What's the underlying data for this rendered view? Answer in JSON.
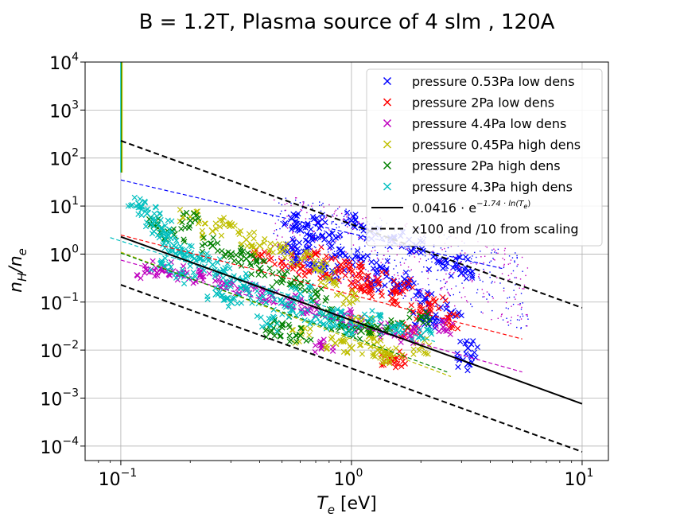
{
  "title": "B = 1.2T, Plasma source of 4 slm , 120A",
  "xlabel": {
    "main": "T",
    "sub": "e",
    "unit": " [eV]"
  },
  "ylabel": {
    "main1": "n",
    "sub1": "H",
    "slash": "/",
    "main2": "n",
    "sub2": "e"
  },
  "chart_data": {
    "type": "scatter",
    "xscale": "log",
    "yscale": "log",
    "xlim": [
      0.07,
      13
    ],
    "ylim": [
      5e-05,
      10000
    ],
    "grid": true,
    "legend_position": "top-right",
    "x_ticks": [
      {
        "value": 0.1,
        "base": "10",
        "exp": "−1"
      },
      {
        "value": 1,
        "base": "10",
        "exp": "0"
      },
      {
        "value": 10,
        "base": "10",
        "exp": "1"
      }
    ],
    "y_ticks": [
      {
        "value": 0.0001,
        "base": "10",
        "exp": "−4"
      },
      {
        "value": 0.001,
        "base": "10",
        "exp": "−3"
      },
      {
        "value": 0.01,
        "base": "10",
        "exp": "−2"
      },
      {
        "value": 0.1,
        "base": "10",
        "exp": "−1"
      },
      {
        "value": 1,
        "base": "10",
        "exp": "0"
      },
      {
        "value": 10,
        "base": "10",
        "exp": "1"
      },
      {
        "value": 100,
        "base": "10",
        "exp": "2"
      },
      {
        "value": 1000,
        "base": "10",
        "exp": "3"
      },
      {
        "value": 10000,
        "base": "10",
        "exp": "4"
      }
    ],
    "series": [
      {
        "name": "pressure 0.53Pa low dens",
        "color": "#0000ff",
        "marker": "x",
        "fit_line": {
          "x": [
            0.1,
            4.5
          ],
          "y": [
            35,
            0.5
          ]
        },
        "points": [
          [
            0.55,
            5.5
          ],
          [
            0.6,
            3.2
          ],
          [
            0.65,
            1.8
          ],
          [
            0.72,
            4.5
          ],
          [
            0.8,
            2.5
          ],
          [
            0.9,
            1.2
          ],
          [
            1.0,
            5.0
          ],
          [
            1.1,
            0.8
          ],
          [
            1.2,
            3.0
          ],
          [
            1.35,
            0.5
          ],
          [
            1.5,
            2.0
          ],
          [
            1.7,
            0.3
          ],
          [
            1.9,
            1.5
          ],
          [
            2.1,
            0.12
          ],
          [
            2.4,
            0.7
          ],
          [
            2.7,
            0.06
          ],
          [
            3.0,
            0.4
          ],
          [
            3.2,
            0.011
          ],
          [
            3.2,
            0.0052
          ],
          [
            1.3,
            0.25
          ],
          [
            0.58,
            0.9
          ],
          [
            0.7,
            0.6
          ],
          [
            1.6,
            0.2
          ],
          [
            2.2,
            0.04
          ],
          [
            2.9,
            0.6
          ],
          [
            0.85,
            0.4
          ],
          [
            0.55,
            1.4
          ],
          [
            2.0,
            0.045
          ]
        ]
      },
      {
        "name": "pressure 2Pa low dens",
        "color": "#ff0000",
        "marker": "x",
        "fit_line": {
          "x": [
            0.1,
            5.5
          ],
          "y": [
            2.5,
            0.017
          ]
        },
        "points": [
          [
            0.4,
            0.9
          ],
          [
            0.5,
            0.7
          ],
          [
            0.6,
            0.5
          ],
          [
            0.7,
            1.0
          ],
          [
            0.8,
            0.35
          ],
          [
            0.9,
            0.6
          ],
          [
            1.0,
            0.25
          ],
          [
            1.1,
            0.45
          ],
          [
            1.2,
            0.18
          ],
          [
            1.3,
            0.3
          ],
          [
            1.5,
            0.12
          ],
          [
            1.7,
            0.2
          ],
          [
            2.0,
            0.06
          ],
          [
            2.3,
            0.1
          ],
          [
            1.55,
            0.0065
          ],
          [
            1.5,
            0.006
          ],
          [
            1.8,
            0.025
          ],
          [
            2.6,
            0.04
          ]
        ]
      },
      {
        "name": "pressure 4.4Pa low dens",
        "color": "#bf00bf",
        "marker": "x",
        "fit_line": {
          "x": [
            0.1,
            5.5
          ],
          "y": [
            0.75,
            0.0035
          ]
        },
        "points": [
          [
            0.13,
            0.45
          ],
          [
            0.15,
            0.5
          ],
          [
            0.18,
            0.4
          ],
          [
            0.22,
            0.35
          ],
          [
            0.28,
            0.25
          ],
          [
            0.35,
            0.2
          ],
          [
            0.45,
            0.14
          ],
          [
            0.55,
            0.1
          ],
          [
            0.65,
            0.07
          ],
          [
            0.75,
            0.012
          ],
          [
            0.9,
            0.05
          ],
          [
            1.1,
            0.035
          ],
          [
            1.4,
            0.025
          ],
          [
            1.8,
            0.02
          ],
          [
            2.5,
            0.03
          ]
        ]
      },
      {
        "name": "pressure 0.45Pa high dens",
        "color": "#bfbf00",
        "marker": "x",
        "fit_line": {
          "x": [
            0.1,
            2.7
          ],
          "y": [
            1.1,
            0.0028
          ]
        },
        "points": [
          [
            0.2,
            6.0
          ],
          [
            0.25,
            3.0
          ],
          [
            0.3,
            4.0
          ],
          [
            0.35,
            2.0
          ],
          [
            0.4,
            1.5
          ],
          [
            0.5,
            1.2
          ],
          [
            0.6,
            0.8
          ],
          [
            0.7,
            0.5
          ],
          [
            0.8,
            0.3
          ],
          [
            0.95,
            0.12
          ],
          [
            1.1,
            0.04
          ],
          [
            1.2,
            0.02
          ],
          [
            1.3,
            0.01
          ],
          [
            1.4,
            0.0075
          ],
          [
            1.5,
            0.007
          ],
          [
            1.0,
            0.011
          ],
          [
            0.85,
            0.014
          ],
          [
            0.6,
            0.02
          ],
          [
            2.0,
            0.012
          ]
        ]
      },
      {
        "name": "pressure 2Pa high dens",
        "color": "#008000",
        "marker": "x",
        "fit_line": {
          "x": [
            0.1,
            2.6
          ],
          "y": [
            1.05,
            0.0035
          ]
        },
        "points": [
          [
            0.14,
            4.0
          ],
          [
            0.17,
            2.5
          ],
          [
            0.2,
            5.0
          ],
          [
            0.25,
            1.5
          ],
          [
            0.3,
            1.0
          ],
          [
            0.35,
            0.8
          ],
          [
            0.4,
            0.5
          ],
          [
            0.5,
            0.3
          ],
          [
            0.6,
            0.25
          ],
          [
            0.7,
            0.15
          ],
          [
            0.8,
            0.06
          ],
          [
            0.5,
            0.035
          ],
          [
            0.45,
            0.025
          ],
          [
            0.6,
            0.02
          ],
          [
            0.9,
            0.03
          ],
          [
            1.1,
            0.025
          ],
          [
            1.3,
            0.03
          ],
          [
            1.6,
            0.035
          ],
          [
            2.0,
            0.05
          ]
        ]
      },
      {
        "name": "pressure 4.3Pa high dens",
        "color": "#00bfbf",
        "marker": "x",
        "fit_line": {
          "x": [
            0.09,
            2.3
          ],
          "y": [
            2.2,
            0.015
          ]
        },
        "points": [
          [
            0.12,
            11.0
          ],
          [
            0.13,
            7.0
          ],
          [
            0.14,
            5.0
          ],
          [
            0.15,
            3.5
          ],
          [
            0.16,
            2.5
          ],
          [
            0.17,
            1.5
          ],
          [
            0.18,
            1.2
          ],
          [
            0.2,
            1.0
          ],
          [
            0.22,
            0.8
          ],
          [
            0.25,
            0.6
          ],
          [
            0.28,
            0.45
          ],
          [
            0.32,
            0.3
          ],
          [
            0.35,
            0.2
          ],
          [
            0.4,
            0.12
          ],
          [
            0.43,
            0.035
          ],
          [
            0.5,
            0.1
          ],
          [
            0.55,
            0.07
          ],
          [
            0.6,
            0.15
          ],
          [
            0.7,
            0.05
          ],
          [
            0.8,
            0.04
          ],
          [
            0.9,
            0.06
          ],
          [
            1.0,
            0.03
          ],
          [
            1.2,
            0.045
          ],
          [
            1.5,
            0.03
          ],
          [
            2.0,
            0.02
          ],
          [
            0.3,
            0.1
          ],
          [
            0.26,
            0.15
          ],
          [
            0.15,
            0.6
          ],
          [
            0.19,
            0.35
          ]
        ]
      }
    ],
    "reference_lines": [
      {
        "name": "0.0416 · e^{−1.74·ln(T_e)}",
        "style": "solid",
        "color": "#000000",
        "x": [
          0.1,
          10
        ],
        "y": [
          2.29,
          0.00076
        ]
      },
      {
        "name": "x100 and /10 from scaling",
        "style": "dashed",
        "color": "#000000",
        "x": [
          0.1,
          10
        ],
        "y": [
          229,
          0.076
        ]
      },
      {
        "style": "dashed",
        "color": "#000000",
        "x": [
          0.1,
          10
        ],
        "y": [
          0.229,
          7.6e-05
        ]
      }
    ],
    "spike": {
      "x": 0.1,
      "y_top": 10000,
      "y_bottom": 50,
      "colors": [
        "#00bfbf",
        "#008000",
        "#bfbf00"
      ]
    }
  },
  "legend": {
    "entries": [
      {
        "label": "pressure 0.53Pa low dens",
        "color": "#0000ff",
        "type": "marker"
      },
      {
        "label": "pressure 2Pa low dens",
        "color": "#ff0000",
        "type": "marker"
      },
      {
        "label": "pressure 4.4Pa low dens",
        "color": "#bf00bf",
        "type": "marker"
      },
      {
        "label": "pressure 0.45Pa high dens",
        "color": "#bfbf00",
        "type": "marker"
      },
      {
        "label": "pressure 2Pa high dens",
        "color": "#008000",
        "type": "marker"
      },
      {
        "label": "pressure 4.3Pa high dens",
        "color": "#00bfbf",
        "type": "marker"
      },
      {
        "label": "0.0416 · e",
        "sup": "−1.74 · ln(T",
        "sup_sub": "e",
        "sup_end": ")",
        "color": "#000000",
        "type": "solid"
      },
      {
        "label": "x100 and /10 from scaling",
        "color": "#000000",
        "type": "dashed"
      }
    ]
  }
}
